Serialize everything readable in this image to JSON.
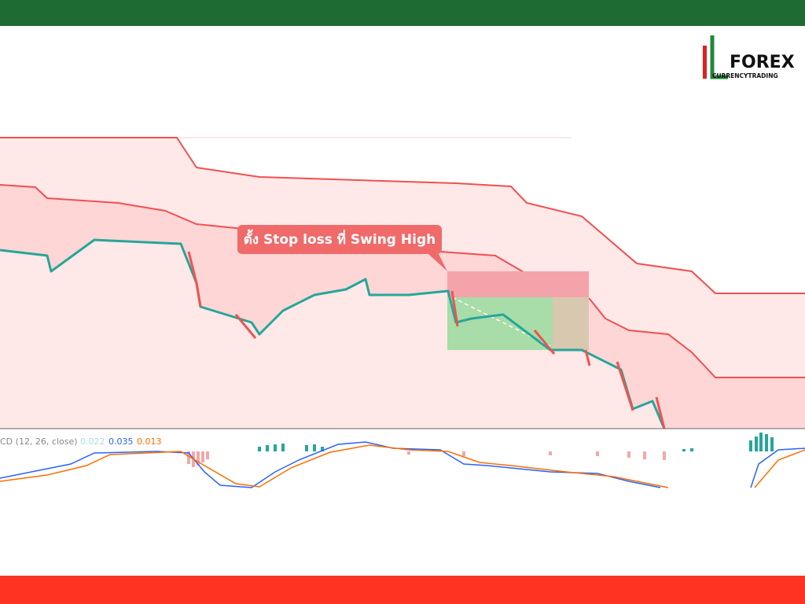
{
  "logo": {
    "brand": "FOREX",
    "tagline": "CURRENCYTRADING"
  },
  "annotation": "ตั้ง Stop loss ที่ Swing High",
  "macd": {
    "label": "CD (12, 26, close)",
    "histogram": "0.022",
    "macd": "0.035",
    "signal": "0.013"
  }
}
